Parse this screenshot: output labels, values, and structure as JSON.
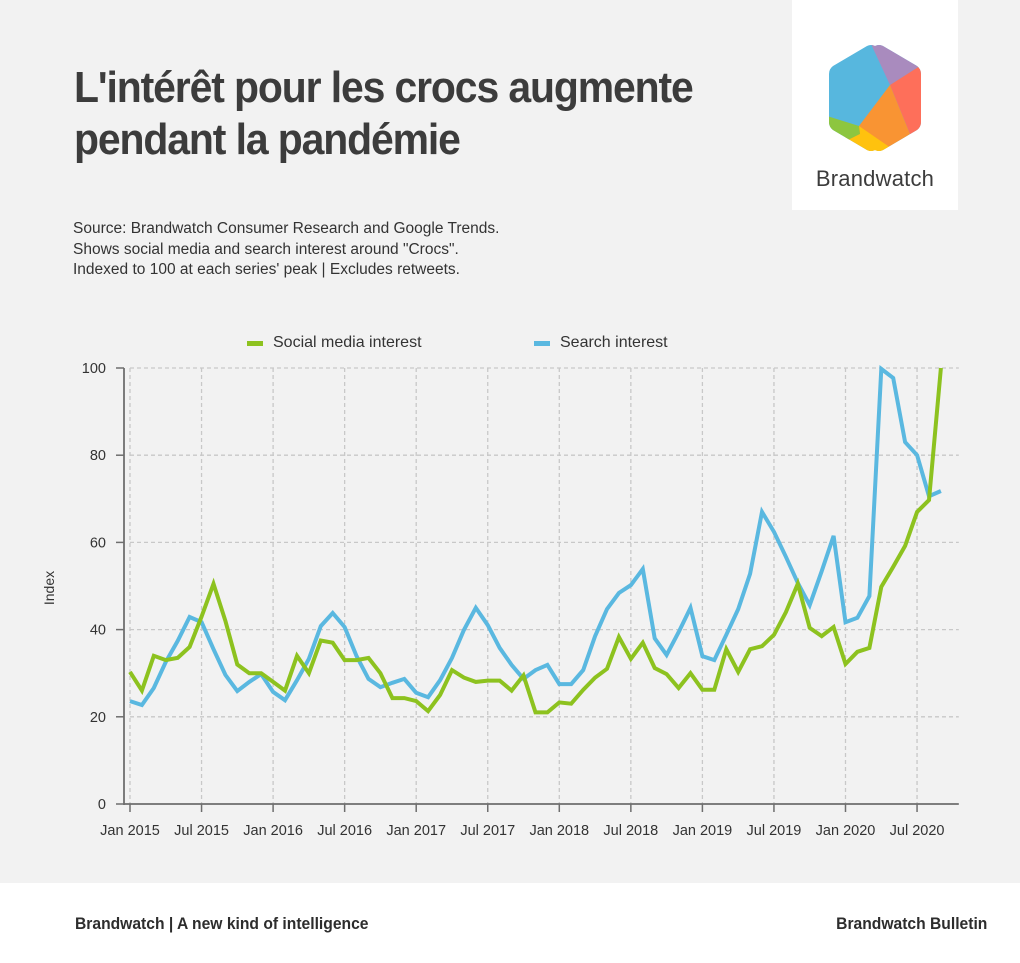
{
  "header": {
    "title_line1": "L'intérêt pour les crocs augmente",
    "title_line2": "pendant la pandémie",
    "logo_text": "Brandwatch",
    "logo_icon": "brandwatch-hexagon-icon"
  },
  "source": {
    "lines": [
      "Source: Brandwatch Consumer Research and Google Trends.",
      "Shows social media and search interest around \"Crocs\".",
      "Indexed to 100 at each series' peak | Excludes retweets."
    ]
  },
  "footer": {
    "left": "Brandwatch | A new kind of intelligence",
    "right": "Brandwatch Bulletin"
  },
  "colors": {
    "social": "#8dc21f",
    "search": "#5ab8e0",
    "background": "#f2f2f2",
    "text": "#3c3c3c",
    "logo_blue": "#57b7de",
    "logo_purple": "#a98bbe",
    "logo_red": "#fe6f5a",
    "logo_orange": "#f99433",
    "logo_yellow": "#ffc20e",
    "logo_green": "#8dc63f"
  },
  "chart_data": {
    "type": "line",
    "title": "L'intérêt pour les crocs augmente pendant la pandémie",
    "xlabel": "",
    "ylabel": "Index",
    "ylim": [
      0,
      100
    ],
    "yticks": [
      0,
      20,
      40,
      60,
      80,
      100
    ],
    "grid": true,
    "legend_position": "top-center",
    "x_start": "Jan 2015",
    "x_interval": "monthly",
    "x_tick_labels": [
      "Jan 2015",
      "Jul 2015",
      "Jan 2016",
      "Jul 2016",
      "Jan 2017",
      "Jul 2017",
      "Jan 2018",
      "Jul 2018",
      "Jan 2019",
      "Jul 2019",
      "Jan 2020",
      "Jul 2020"
    ],
    "series": [
      {
        "name": "Social media interest",
        "color": "#8dc21f",
        "values": [
          30.3,
          26,
          34,
          33,
          33.5,
          36,
          43,
          50.5,
          42,
          32,
          30,
          30,
          28,
          26,
          34,
          30,
          37.5,
          37,
          33,
          33,
          33.5,
          30,
          24.3,
          24.3,
          23.6,
          21.3,
          25,
          30.7,
          29,
          28,
          28.3,
          28.3,
          26,
          29.5,
          21,
          21,
          23.3,
          23,
          26.2,
          29,
          31,
          38.3,
          33.3,
          37,
          31.2,
          29.8,
          26.6,
          30,
          26.2,
          26.2,
          35.5,
          30.3,
          35.5,
          36.2,
          38.8,
          44,
          50.5,
          40.4,
          38.5,
          40.6,
          32.1,
          34.9,
          35.8,
          49.8,
          54.4,
          59.2,
          67,
          69.7,
          100
        ]
      },
      {
        "name": "Search interest",
        "color": "#5ab8e0",
        "values": [
          23.6,
          22.7,
          26.6,
          32.6,
          37.4,
          42.9,
          41.7,
          35.5,
          29.6,
          25.9,
          28,
          29.8,
          25.7,
          23.8,
          28.4,
          33.3,
          40.8,
          43.8,
          40.6,
          33.9,
          28.7,
          26.8,
          27.8,
          28.7,
          25.5,
          24.5,
          28.4,
          33.5,
          39.9,
          45,
          41,
          35.8,
          31.9,
          28.7,
          30.7,
          31.9,
          27.5,
          27.5,
          30.7,
          38.5,
          44.7,
          48.4,
          50.2,
          53.9,
          38,
          34.2,
          39.4,
          45,
          33.9,
          33,
          38.8,
          44.7,
          52.8,
          67,
          62.4,
          56.7,
          50.7,
          45.6,
          53.4,
          61.5,
          41.7,
          42.7,
          47.7,
          99.8,
          97.7,
          83,
          80,
          70.6,
          71.8
        ]
      }
    ]
  }
}
